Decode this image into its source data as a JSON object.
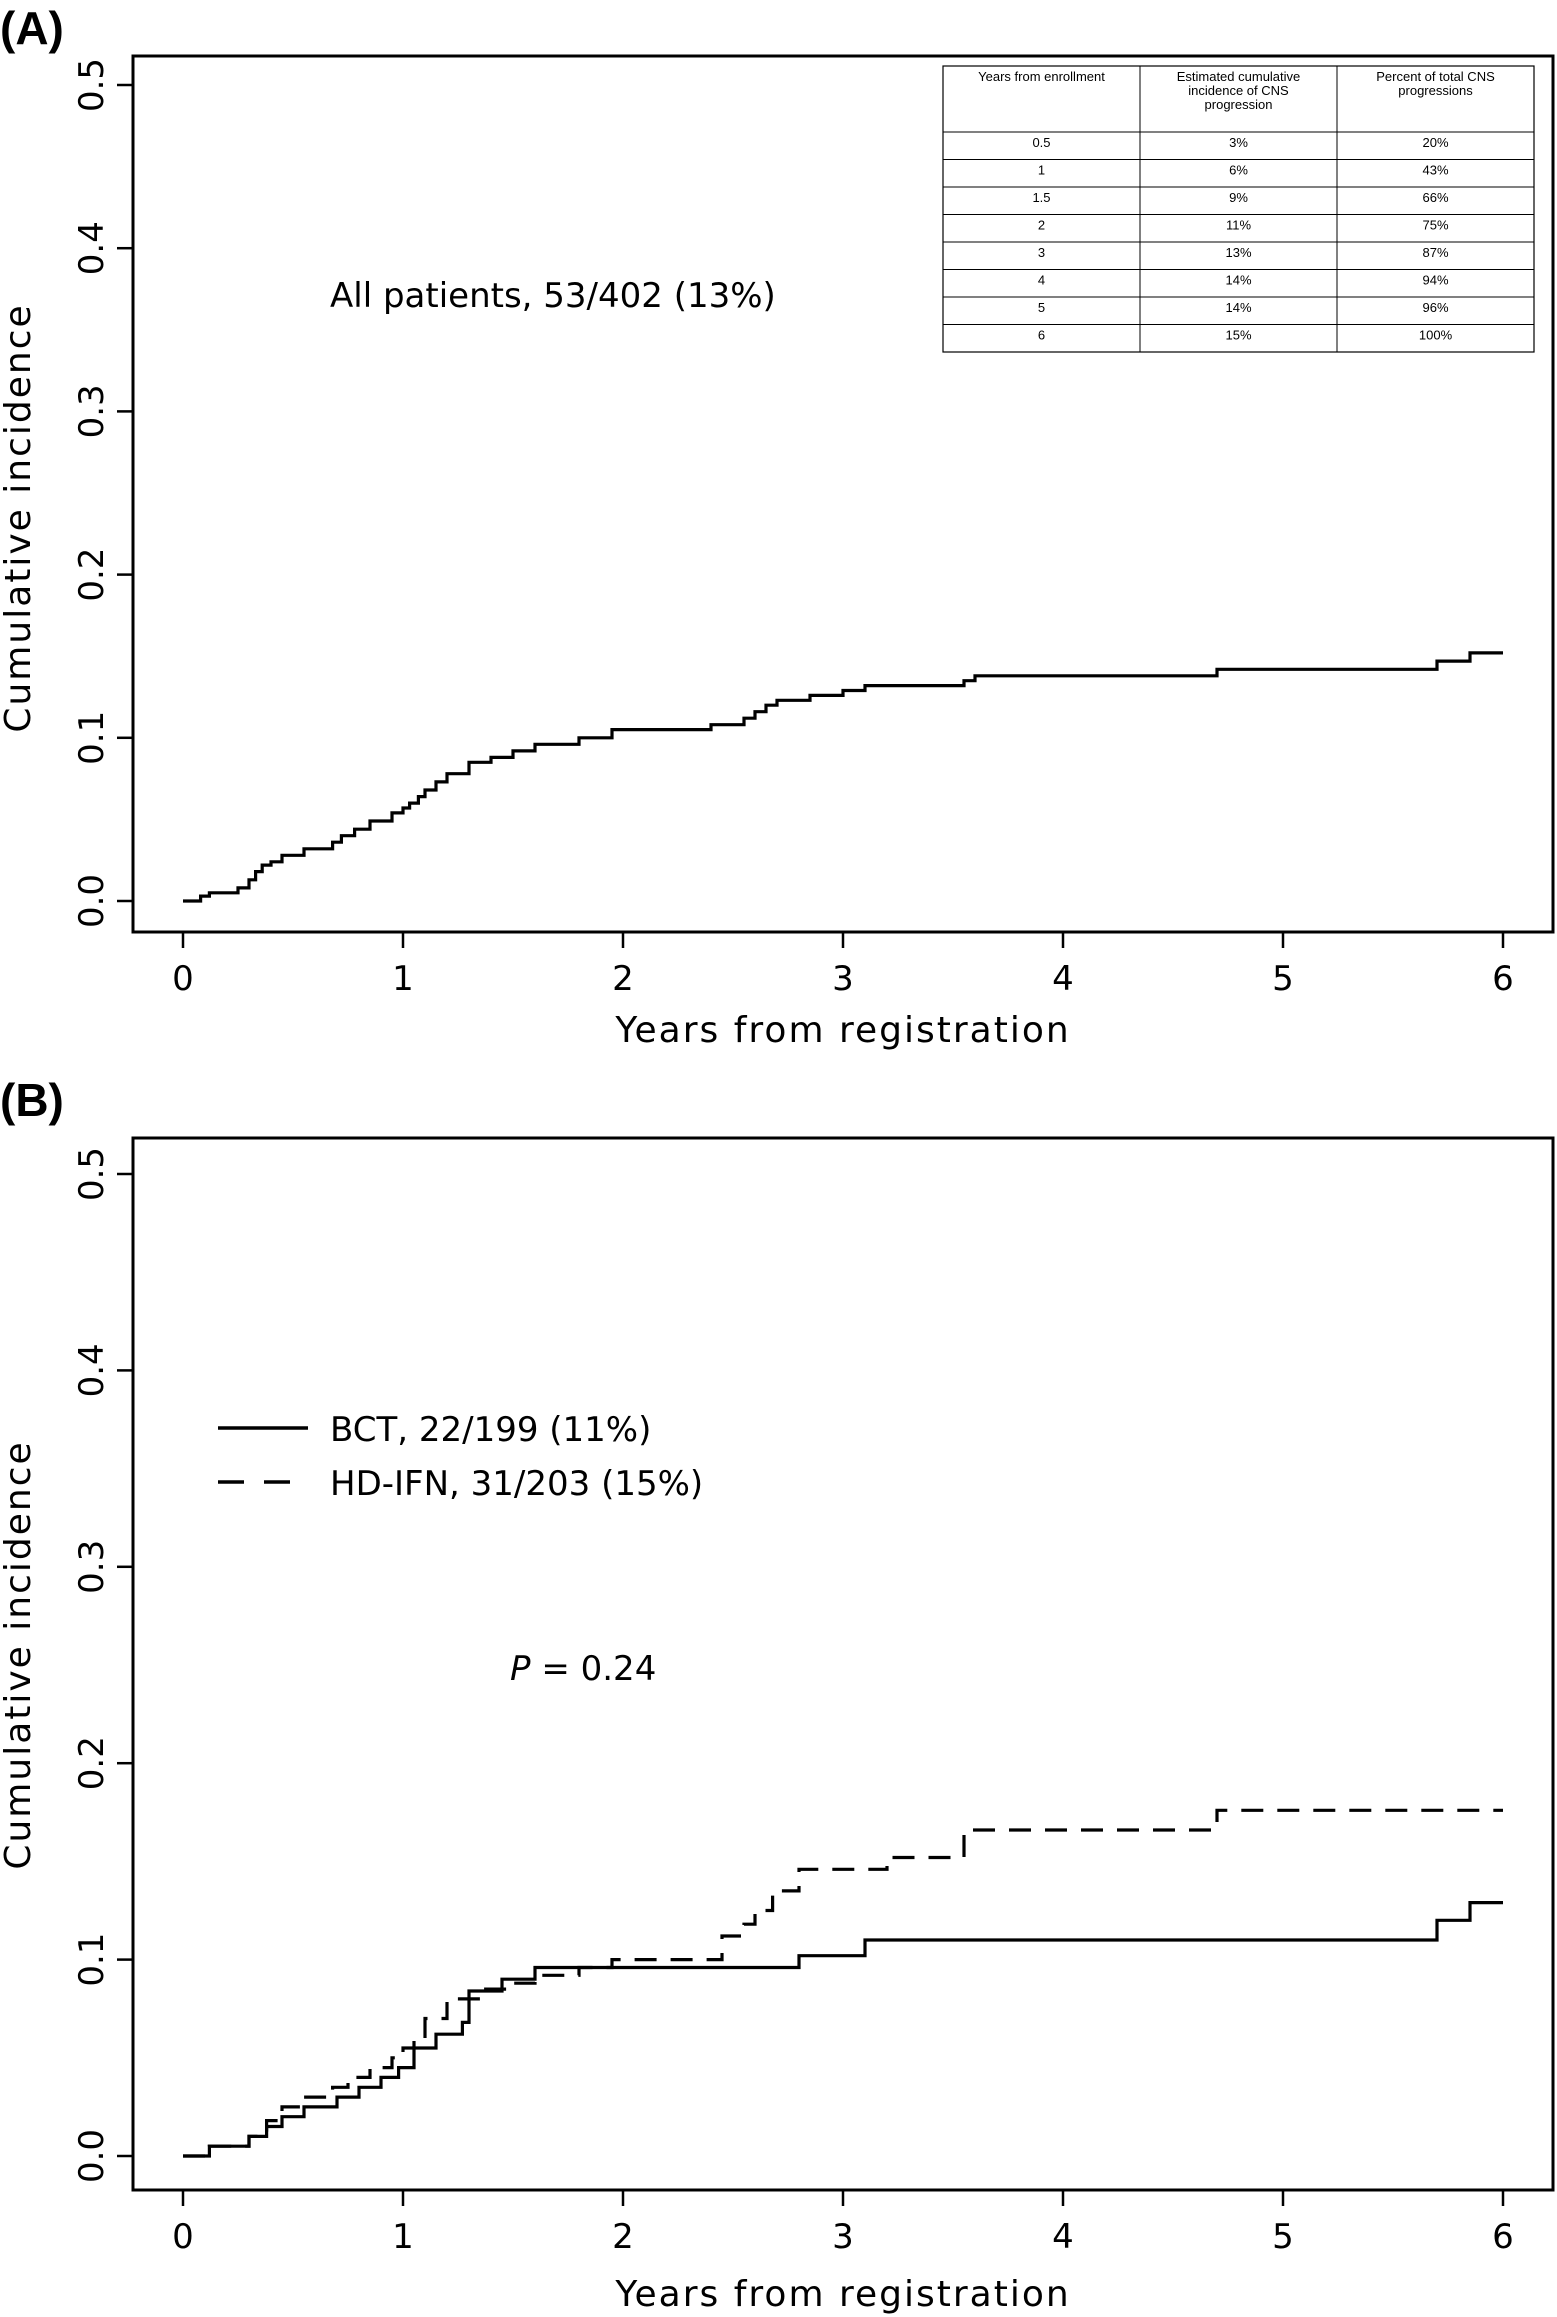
{
  "chart_data": [
    {
      "panel_label": "(A)",
      "type": "line",
      "xlabel": "Years from registration",
      "ylabel": "Cumulative incidence",
      "xlim": [
        0,
        6
      ],
      "ylim": [
        0,
        0.5
      ],
      "xticks": [
        "0",
        "1",
        "2",
        "3",
        "4",
        "5",
        "6"
      ],
      "yticks": [
        "0.0",
        "0.1",
        "0.2",
        "0.3",
        "0.4",
        "0.5"
      ],
      "grid": false,
      "annotation": "All patients, 53/402 (13%)",
      "series": [
        {
          "style": "solid",
          "x": [
            0,
            0.08,
            0.12,
            0.25,
            0.3,
            0.33,
            0.36,
            0.4,
            0.45,
            0.55,
            0.68,
            0.72,
            0.78,
            0.85,
            0.95,
            1.0,
            1.03,
            1.07,
            1.1,
            1.15,
            1.2,
            1.3,
            1.4,
            1.5,
            1.6,
            1.8,
            1.95,
            2.4,
            2.55,
            2.6,
            2.65,
            2.7,
            2.85,
            3.0,
            3.1,
            3.55,
            3.6,
            4.7,
            5.7,
            5.85,
            6.0
          ],
          "y": [
            0,
            0.003,
            0.005,
            0.008,
            0.013,
            0.018,
            0.022,
            0.024,
            0.028,
            0.032,
            0.036,
            0.04,
            0.044,
            0.049,
            0.054,
            0.057,
            0.06,
            0.064,
            0.068,
            0.073,
            0.078,
            0.085,
            0.088,
            0.092,
            0.096,
            0.1,
            0.105,
            0.108,
            0.112,
            0.116,
            0.12,
            0.123,
            0.126,
            0.129,
            0.132,
            0.135,
            0.138,
            0.142,
            0.147,
            0.152,
            0.152
          ]
        }
      ],
      "inset_table": {
        "headers": [
          "Years from enrollment",
          "Estimated cumulative incidence of CNS progression",
          "Percent of total CNS progressions"
        ],
        "rows": [
          [
            "0.5",
            "3%",
            "20%"
          ],
          [
            "1",
            "6%",
            "43%"
          ],
          [
            "1.5",
            "9%",
            "66%"
          ],
          [
            "2",
            "11%",
            "75%"
          ],
          [
            "3",
            "13%",
            "87%"
          ],
          [
            "4",
            "14%",
            "94%"
          ],
          [
            "5",
            "14%",
            "96%"
          ],
          [
            "6",
            "15%",
            "100%"
          ]
        ]
      }
    },
    {
      "panel_label": "(B)",
      "type": "line",
      "xlabel": "Years from registration",
      "ylabel": "Cumulative incidence",
      "xlim": [
        0,
        6
      ],
      "ylim": [
        0,
        0.5
      ],
      "xticks": [
        "0",
        "1",
        "2",
        "3",
        "4",
        "5",
        "6"
      ],
      "yticks": [
        "0.0",
        "0.1",
        "0.2",
        "0.3",
        "0.4",
        "0.5"
      ],
      "grid": false,
      "pvalue": {
        "label": "P",
        "text": " = 0.24"
      },
      "legend_placement": "upper-left",
      "series": [
        {
          "name": "BCT, 22/199 (11%)",
          "style": "solid",
          "x": [
            0,
            0.12,
            0.3,
            0.38,
            0.45,
            0.55,
            0.7,
            0.8,
            0.9,
            0.98,
            1.05,
            1.15,
            1.27,
            1.3,
            1.45,
            1.6,
            2.8,
            3.1,
            5.7,
            5.85,
            6.0
          ],
          "y": [
            0,
            0.005,
            0.01,
            0.015,
            0.02,
            0.025,
            0.03,
            0.035,
            0.04,
            0.045,
            0.055,
            0.062,
            0.068,
            0.084,
            0.09,
            0.096,
            0.102,
            0.11,
            0.12,
            0.129,
            0.129
          ]
        },
        {
          "name": "HD-IFN, 31/203 (15%)",
          "style": "dashed",
          "x": [
            0,
            0.12,
            0.3,
            0.38,
            0.45,
            0.55,
            0.68,
            0.75,
            0.85,
            0.95,
            1.0,
            1.05,
            1.1,
            1.2,
            1.35,
            1.5,
            1.6,
            1.8,
            1.95,
            2.45,
            2.55,
            2.6,
            2.68,
            2.8,
            3.2,
            3.55,
            4.7,
            6.0
          ],
          "y": [
            0,
            0.005,
            0.01,
            0.018,
            0.025,
            0.03,
            0.035,
            0.04,
            0.045,
            0.05,
            0.055,
            0.06,
            0.07,
            0.08,
            0.085,
            0.088,
            0.092,
            0.096,
            0.1,
            0.112,
            0.118,
            0.125,
            0.135,
            0.146,
            0.152,
            0.166,
            0.176,
            0.176
          ]
        }
      ]
    }
  ]
}
